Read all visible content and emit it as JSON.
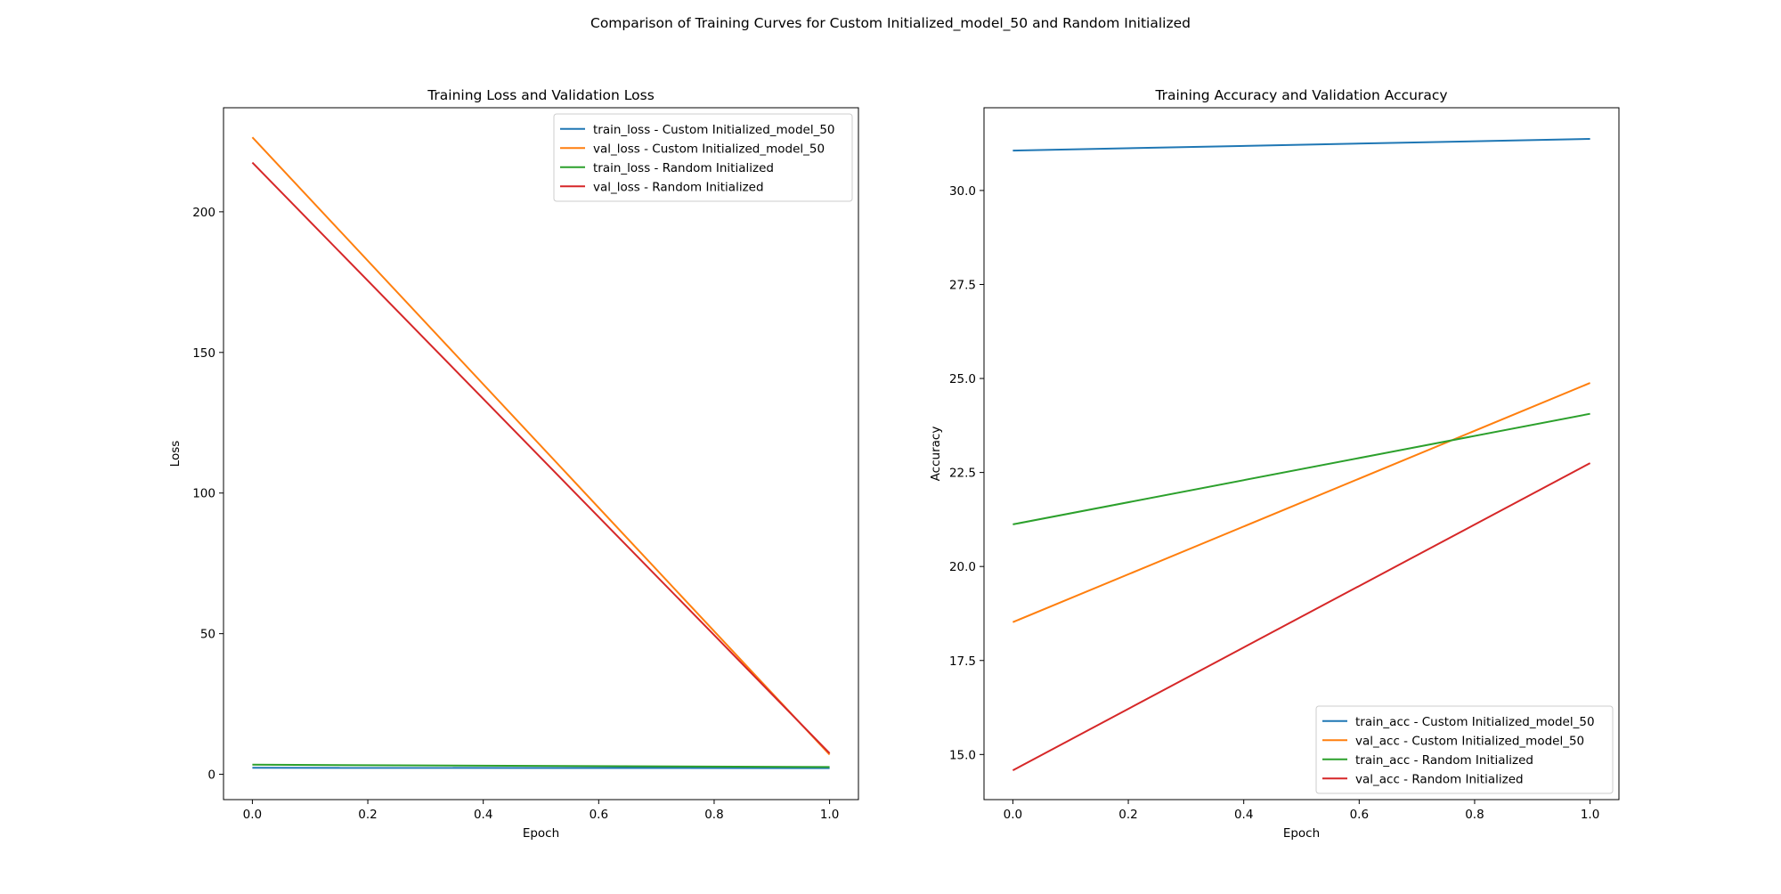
{
  "figure": {
    "suptitle": "Comparison of Training Curves for Custom Initialized_model_50 and Random Initialized"
  },
  "chart_data": [
    {
      "type": "line",
      "title": "Training Loss and Validation Loss",
      "xlabel": "Epoch",
      "ylabel": "Loss",
      "xlim": [
        -0.05,
        1.05
      ],
      "ylim": [
        -9,
        237
      ],
      "x_ticks": [
        0.0,
        0.2,
        0.4,
        0.6,
        0.8,
        1.0
      ],
      "x_tick_labels": [
        "0.0",
        "0.2",
        "0.4",
        "0.6",
        "0.8",
        "1.0"
      ],
      "y_ticks": [
        0,
        50,
        100,
        150,
        200
      ],
      "y_tick_labels": [
        "0",
        "50",
        "100",
        "150",
        "200"
      ],
      "legend_position": "top-right",
      "grid": false,
      "x": [
        0,
        1
      ],
      "series": [
        {
          "name": "train_loss - Custom Initialized_model_50",
          "color": "#1f77b4",
          "values": [
            2.3,
            2.2
          ]
        },
        {
          "name": "val_loss - Custom Initialized_model_50",
          "color": "#ff7f0e",
          "values": [
            226.5,
            7.0
          ]
        },
        {
          "name": "train_loss - Random Initialized",
          "color": "#2ca02c",
          "values": [
            3.4,
            2.6
          ]
        },
        {
          "name": "val_loss - Random Initialized",
          "color": "#d62728",
          "values": [
            217.5,
            7.5
          ]
        }
      ]
    },
    {
      "type": "line",
      "title": "Training Accuracy and Validation Accuracy",
      "xlabel": "Epoch",
      "ylabel": "Accuracy",
      "xlim": [
        -0.05,
        1.05
      ],
      "ylim": [
        13.8,
        32.2
      ],
      "x_ticks": [
        0.0,
        0.2,
        0.4,
        0.6,
        0.8,
        1.0
      ],
      "x_tick_labels": [
        "0.0",
        "0.2",
        "0.4",
        "0.6",
        "0.8",
        "1.0"
      ],
      "y_ticks": [
        15.0,
        17.5,
        20.0,
        22.5,
        25.0,
        27.5,
        30.0
      ],
      "y_tick_labels": [
        "15.0",
        "17.5",
        "20.0",
        "22.5",
        "25.0",
        "27.5",
        "30.0"
      ],
      "legend_position": "bottom-right",
      "grid": false,
      "x": [
        0,
        1
      ],
      "series": [
        {
          "name": "train_acc - Custom Initialized_model_50",
          "color": "#1f77b4",
          "values": [
            31.06,
            31.37
          ]
        },
        {
          "name": "val_acc - Custom Initialized_model_50",
          "color": "#ff7f0e",
          "values": [
            18.52,
            24.88
          ]
        },
        {
          "name": "train_acc - Random Initialized",
          "color": "#2ca02c",
          "values": [
            21.12,
            24.06
          ]
        },
        {
          "name": "val_acc - Random Initialized",
          "color": "#d62728",
          "values": [
            14.58,
            22.75
          ]
        }
      ]
    }
  ]
}
